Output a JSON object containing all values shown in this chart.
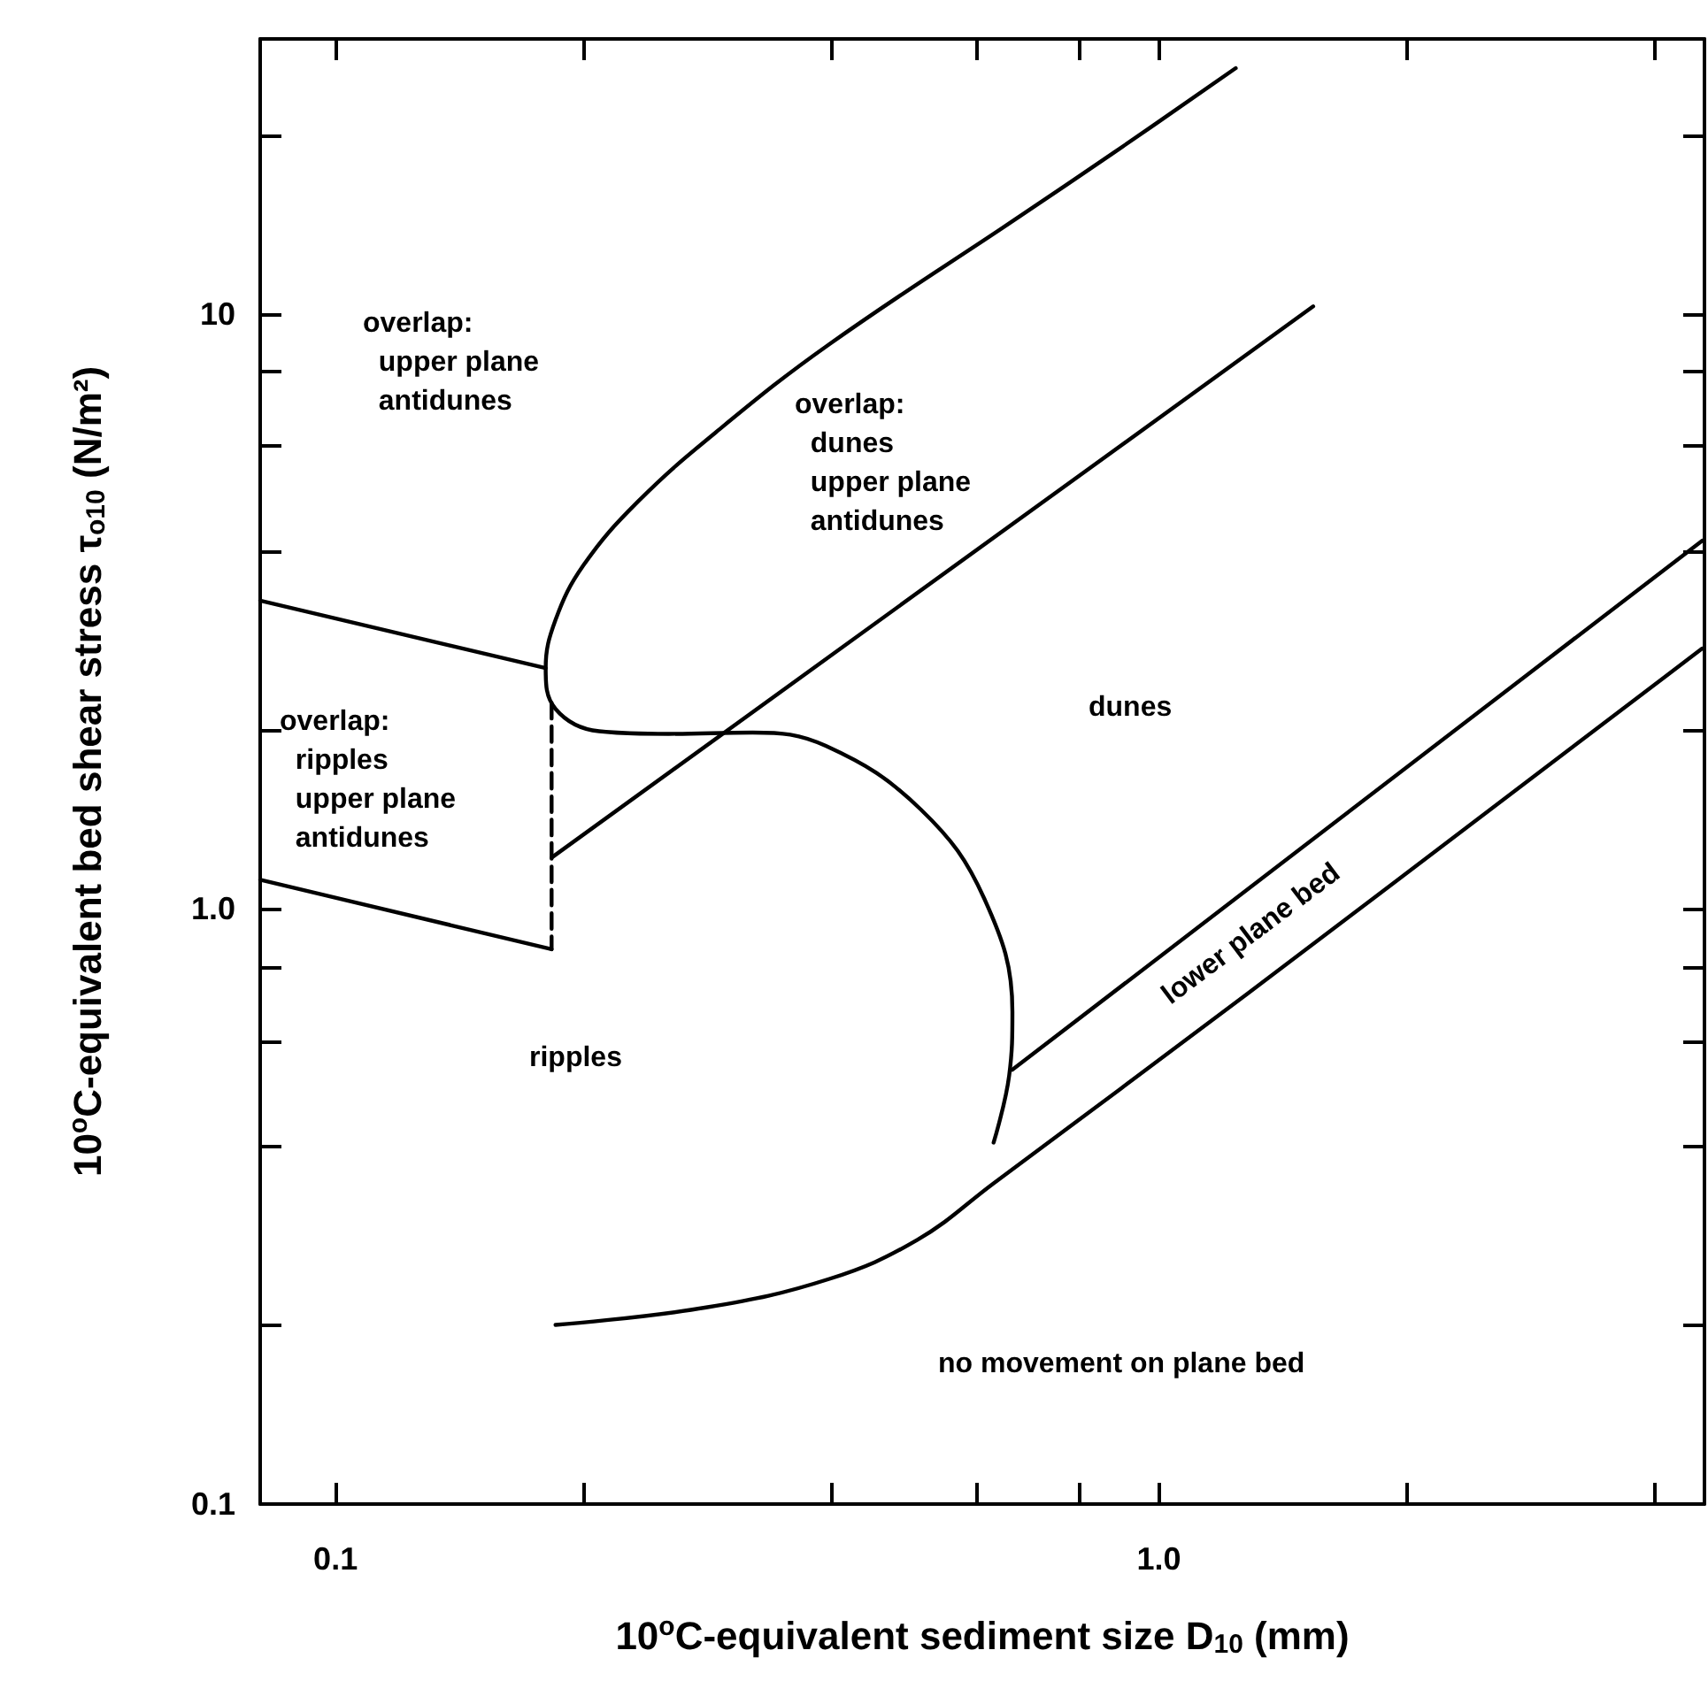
{
  "chart_data": {
    "type": "line",
    "xlabel": "10$^{o}$C-equivalent sediment size D$_{10}$ (mm)",
    "ylabel": "10$^{o}$C-equivalent bed shear stress τ$_{o10}$ (N/m²)",
    "log": "xy",
    "grid": false,
    "marker": "none",
    "line_style": "solid",
    "xlim": [
      0.081,
      4.6
    ],
    "ylim": [
      0.1,
      29
    ],
    "xticks": [
      0.1,
      {
        "value": 0.2,
        "label": null
      },
      {
        "value": 0.4,
        "label": null
      },
      {
        "value": 0.6,
        "label": null
      },
      {
        "value": 0.8,
        "label": null
      },
      {
        "value": 1,
        "label": "1.0"
      },
      {
        "value": 2,
        "label": null
      },
      {
        "value": 4,
        "label": null
      }
    ],
    "yticks": [
      0.1,
      {
        "value": 0.2,
        "label": null
      },
      {
        "value": 0.4,
        "label": null
      },
      {
        "value": 0.6,
        "label": null
      },
      {
        "value": 0.8,
        "label": null
      },
      {
        "value": 1,
        "label": "1.0"
      },
      {
        "value": 2,
        "label": null
      },
      {
        "value": 4,
        "label": null
      },
      {
        "value": 6,
        "label": null
      },
      {
        "value": 8,
        "label": null
      },
      10,
      {
        "value": 20,
        "label": null
      }
    ],
    "series": [
      {
        "color": "#000000",
        "x": [
          0.081,
          0.18
        ],
        "values": [
          3.3,
          2.54
        ]
      },
      {
        "color": "#000000",
        "x": [
          0.081,
          0.183
        ],
        "values": [
          1.12,
          0.856
        ]
      },
      {
        "color": "#000000",
        "line_style": "dashed",
        "x": [
          0.183,
          0.183
        ],
        "values": [
          2.22,
          0.856
        ]
      },
      {
        "color": "#000000",
        "x": [
          0.183,
          1.54
        ],
        "values": [
          1.22,
          10.3
        ]
      },
      {
        "color": "#000000",
        "x": [
          1.24,
          0.883,
          0.678,
          0.398,
          0.293,
          0.233,
          0.2,
          0.185,
          0.18,
          0.185,
          0.209,
          0.254,
          0.321,
          0.394,
          0.514,
          0.614,
          0.664,
          0.658,
          0.63
        ],
        "values": [
          25.9,
          18.7,
          14.6,
          8.9,
          6.41,
          4.84,
          3.78,
          3.06,
          2.54,
          2.17,
          1.99,
          1.97,
          1.98,
          1.88,
          1.47,
          1.04,
          0.672,
          0.525,
          0.405
        ]
      },
      {
        "color": "#000000",
        "x": [
          0.664,
          4.57
        ],
        "values": [
          0.537,
          4.16
        ]
      },
      {
        "color": "#000000",
        "x": [
          0.185,
          0.282,
          0.398,
          0.509,
          0.63,
          1.28,
          4.57
        ],
        "values": [
          0.2,
          0.214,
          0.239,
          0.278,
          0.346,
          0.72,
          2.74
        ]
      }
    ],
    "annotations": [
      "overlap:\n  upper plane\n  antidunes",
      "overlap:\n  dunes\n  upper plane\n  antidunes",
      "overlap:\n  ripples\n  upper plane\n  antidunes",
      "dunes",
      "ripples",
      "lower plane bed",
      "no movement on plane bed"
    ]
  }
}
